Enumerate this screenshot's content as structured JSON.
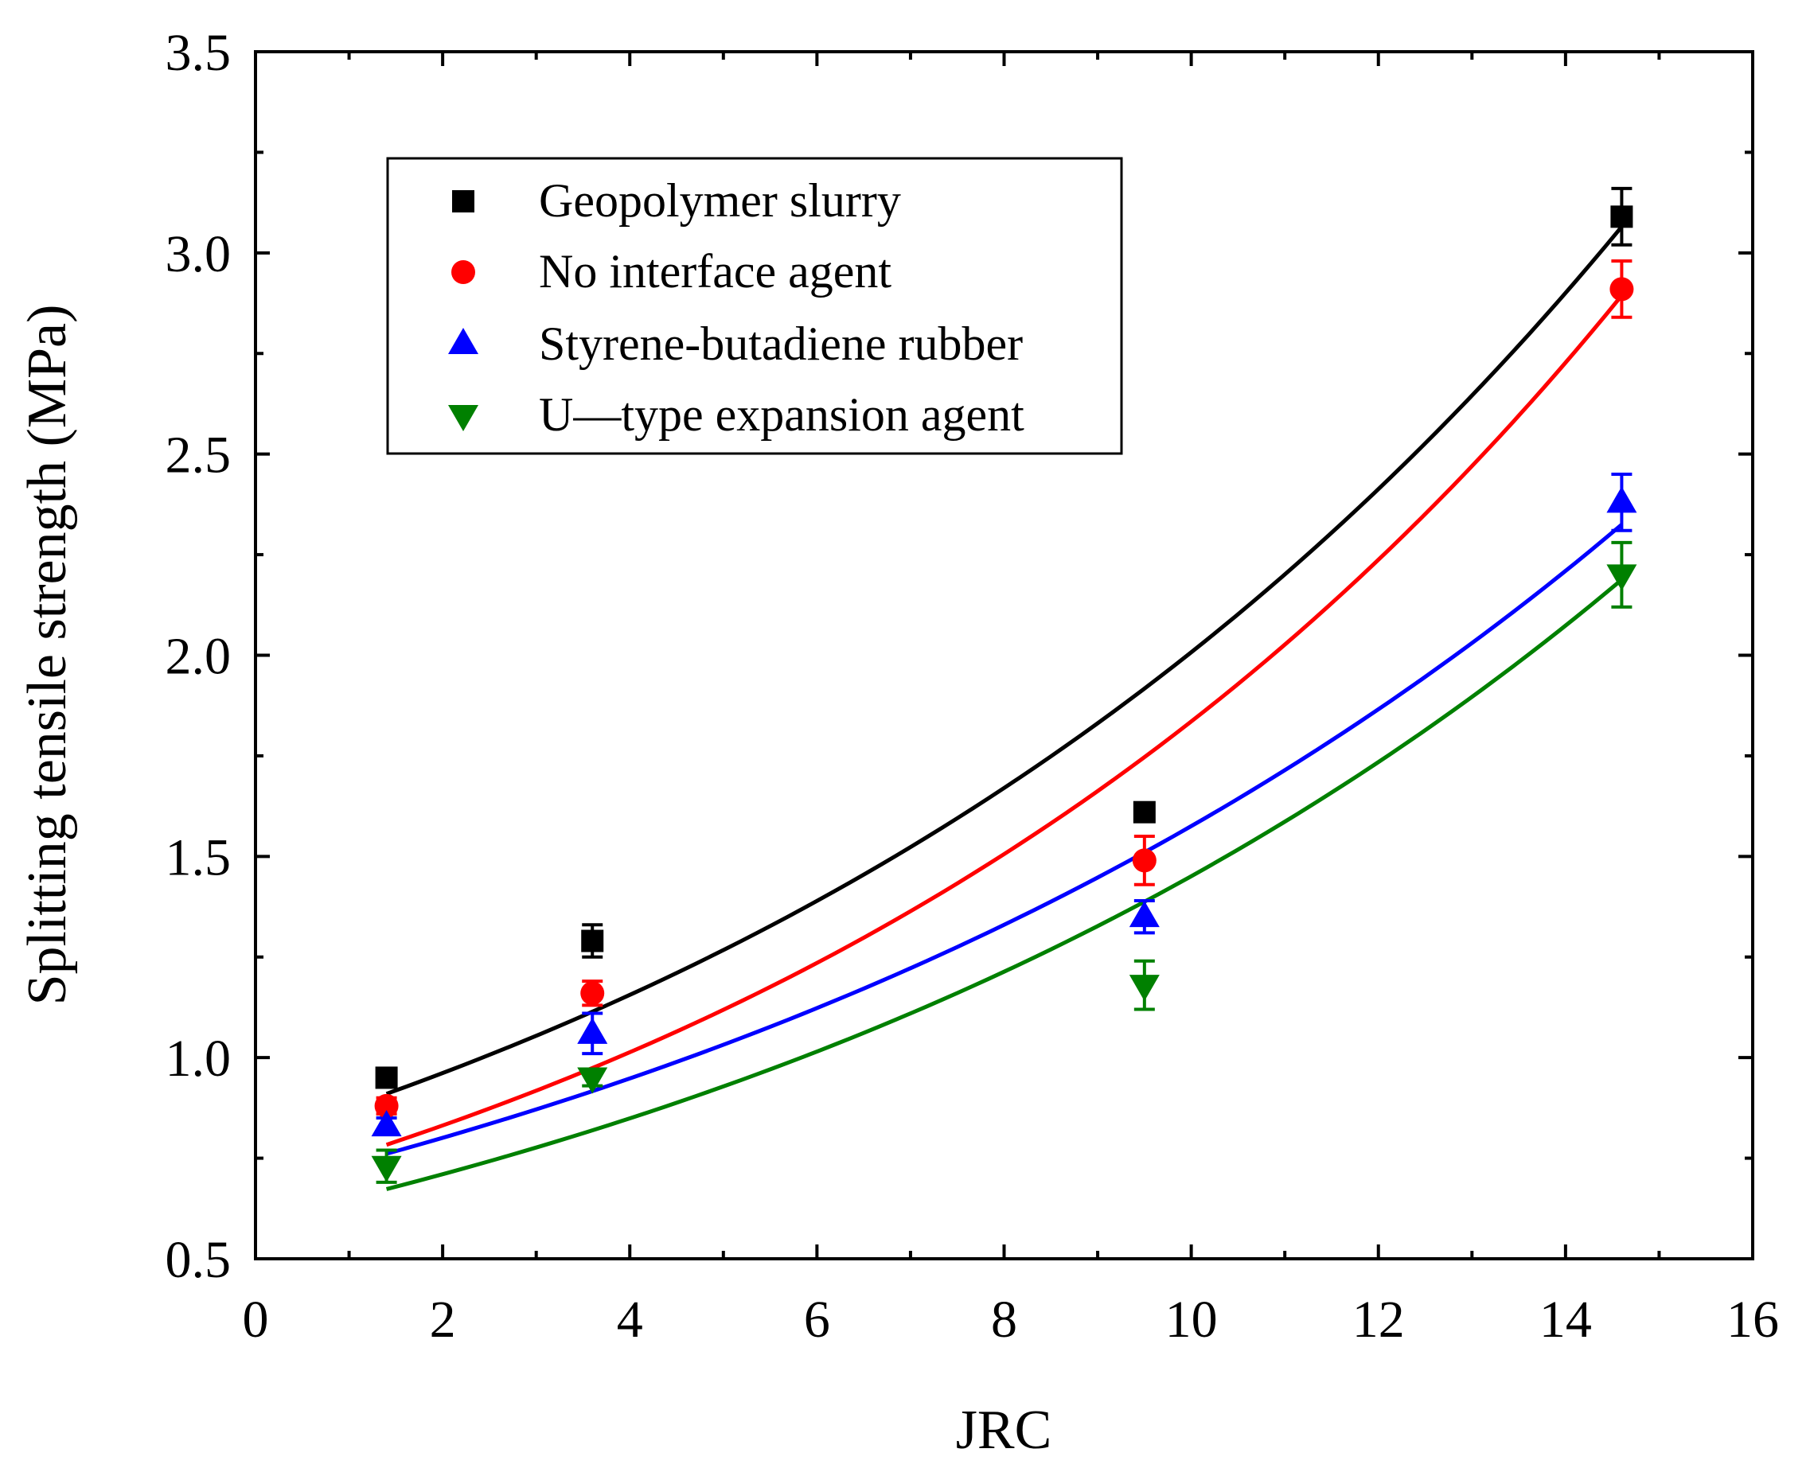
{
  "chart_data": {
    "type": "scatter",
    "xlabel": "JRC",
    "ylabel": "Splitting tensile strength (MPa)",
    "xlim": [
      0,
      16
    ],
    "ylim": [
      0.5,
      3.5
    ],
    "xticks": [
      "0",
      "2",
      "4",
      "6",
      "8",
      "10",
      "12",
      "14",
      "16"
    ],
    "yticks": [
      "0.5",
      "1.0",
      "1.5",
      "2.0",
      "2.5",
      "3.0",
      "3.5"
    ],
    "legend_position": "top-left",
    "series": [
      {
        "name": "Geopolymer slurry",
        "color": "#000000",
        "marker": "square",
        "x": [
          1.4,
          3.6,
          9.5,
          14.6
        ],
        "y": [
          0.95,
          1.29,
          1.61,
          3.09
        ],
        "err": [
          0.02,
          0.04,
          0.02,
          0.07
        ],
        "fit": {
          "a": 0.8,
          "b": 0.092
        }
      },
      {
        "name": "No interface agent",
        "color": "#ff0000",
        "marker": "circle",
        "x": [
          1.4,
          3.6,
          9.5,
          14.6
        ],
        "y": [
          0.88,
          1.16,
          1.49,
          2.91
        ],
        "err": [
          0.02,
          0.03,
          0.06,
          0.07
        ],
        "fit": {
          "a": 0.682,
          "b": 0.099
        }
      },
      {
        "name": "Styrene-butadiene rubber",
        "color": "#0000ff",
        "marker": "triangle-up",
        "x": [
          1.4,
          3.6,
          9.5,
          14.6
        ],
        "y": [
          0.83,
          1.06,
          1.35,
          2.38
        ],
        "err": [
          0.02,
          0.05,
          0.04,
          0.07
        ],
        "fit": {
          "a": 0.676,
          "b": 0.0846
        }
      },
      {
        "name": "U—type expansion agent",
        "color": "#008000",
        "marker": "triangle-down",
        "x": [
          1.4,
          3.6,
          9.5,
          14.6
        ],
        "y": [
          0.73,
          0.95,
          1.18,
          2.2
        ],
        "err": [
          0.04,
          0.02,
          0.06,
          0.08
        ],
        "fit": {
          "a": 0.594,
          "b": 0.0893
        }
      }
    ]
  }
}
